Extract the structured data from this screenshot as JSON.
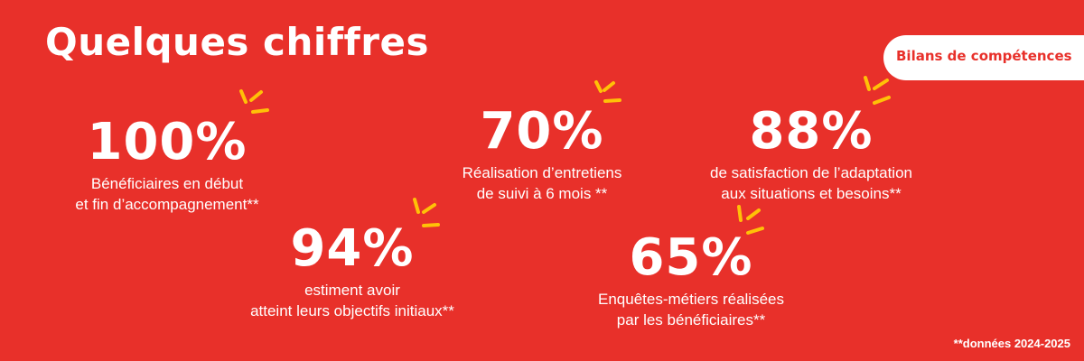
{
  "banner": {
    "title": "Quelques chiffres",
    "badge": "Bilans de compétences",
    "footnote": "**données 2024-2025",
    "colors": {
      "background": "#e8302a",
      "text": "#ffffff",
      "accent": "#ffc107"
    }
  },
  "stats": [
    {
      "value": "100%",
      "line1": "Bénéficiaires en début",
      "line2": "et fin d’accompagnement**"
    },
    {
      "value": "70%",
      "line1": "Réalisation d’entretiens",
      "line2": "de suivi à 6 mois **"
    },
    {
      "value": "88%",
      "line1": "de satisfaction de l’adaptation",
      "line2": "aux situations et besoins**"
    },
    {
      "value": "94%",
      "line1": "estiment avoir",
      "line2": "atteint leurs objectifs initiaux**"
    },
    {
      "value": "65%",
      "line1": "Enquêtes-métiers réalisées",
      "line2": "par les bénéficiaires**"
    }
  ],
  "decorations": {
    "icon": "sparkle-burst-icon",
    "color": "#ffc107"
  }
}
